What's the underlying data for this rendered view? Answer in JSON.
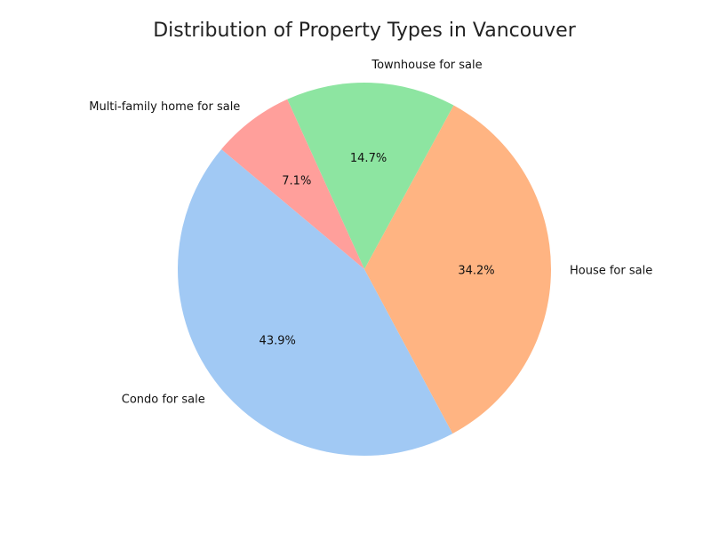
{
  "chart_data": {
    "type": "pie",
    "title": "Distribution of Property Types in Vancouver",
    "slices": [
      {
        "label": "Condo for sale",
        "value": 43.9,
        "pct_label": "43.9%",
        "color": "#a1c9f4"
      },
      {
        "label": "House for sale",
        "value": 34.2,
        "pct_label": "34.2%",
        "color": "#ffb482"
      },
      {
        "label": "Townhouse for sale",
        "value": 14.7,
        "pct_label": "14.7%",
        "color": "#8de5a1"
      },
      {
        "label": "Multi-family home for sale",
        "value": 7.1,
        "pct_label": "7.1%",
        "color": "#ff9f9b"
      }
    ]
  }
}
